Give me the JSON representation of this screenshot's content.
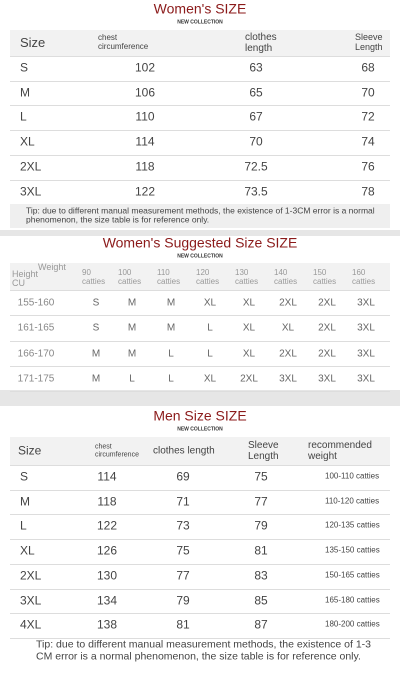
{
  "women_size": {
    "title": "Women's SIZE",
    "subtitle": "NEW COLLECTION",
    "columns": [
      "Size",
      "chest circumference",
      "clothes length",
      "Sleeve Length"
    ],
    "rows": [
      [
        "S",
        102,
        63,
        68
      ],
      [
        "M",
        106,
        65,
        70
      ],
      [
        "L",
        110,
        67,
        72
      ],
      [
        "XL",
        114,
        70,
        74
      ],
      [
        "2XL",
        118,
        72.5,
        76
      ],
      [
        "3XL",
        122,
        73.5,
        78
      ]
    ],
    "tip": "Tip: due to different manual measurement methods, the existence of 1-3CM error is a normal phenomenon, the size table is for reference only."
  },
  "women_suggested": {
    "title": "Women's Suggested Size SIZE",
    "subtitle": "NEW COLLECTION",
    "corner": {
      "weight": "Weight",
      "height": "Height",
      "unit": "CU"
    },
    "columns": [
      "90 catties",
      "100 catties",
      "110 catties",
      "120 catties",
      "130 catties",
      "140 catties",
      "150 catties",
      "160 catties"
    ],
    "rows": [
      {
        "height": "155-160",
        "sizes": [
          "S",
          "M",
          "M",
          "XL",
          "XL",
          "2XL",
          "2XL",
          "3XL"
        ]
      },
      {
        "height": "161-165",
        "sizes": [
          "S",
          "M",
          "M",
          "L",
          "XL",
          "XL",
          "2XL",
          "3XL"
        ]
      },
      {
        "height": "166-170",
        "sizes": [
          "M",
          "M",
          "L",
          "L",
          "XL",
          "2XL",
          "2XL",
          "3XL"
        ]
      },
      {
        "height": "171-175",
        "sizes": [
          "M",
          "L",
          "L",
          "XL",
          "2XL",
          "3XL",
          "3XL",
          "3XL"
        ]
      }
    ]
  },
  "men_size": {
    "title": "Men Size SIZE",
    "subtitle": "NEW COLLECTION",
    "columns": [
      "Size",
      "chest circumference",
      "clothes length",
      "Sleeve Length",
      "recommended weight"
    ],
    "rows": [
      [
        "S",
        114,
        69,
        75,
        "100-110 catties"
      ],
      [
        "M",
        118,
        71,
        77,
        "110-120 catties"
      ],
      [
        "L",
        122,
        73,
        79,
        "120-135 catties"
      ],
      [
        "XL",
        126,
        75,
        81,
        "135-150 catties"
      ],
      [
        "2XL",
        130,
        77,
        83,
        "150-165 catties"
      ],
      [
        "3XL",
        134,
        79,
        85,
        "165-180 catties"
      ],
      [
        "4XL",
        138,
        81,
        87,
        "180-200 catties"
      ]
    ],
    "tip": "Tip: due to different manual measurement methods, the existence of 1-3 CM error is a normal phenomenon, the size table is for reference only."
  }
}
